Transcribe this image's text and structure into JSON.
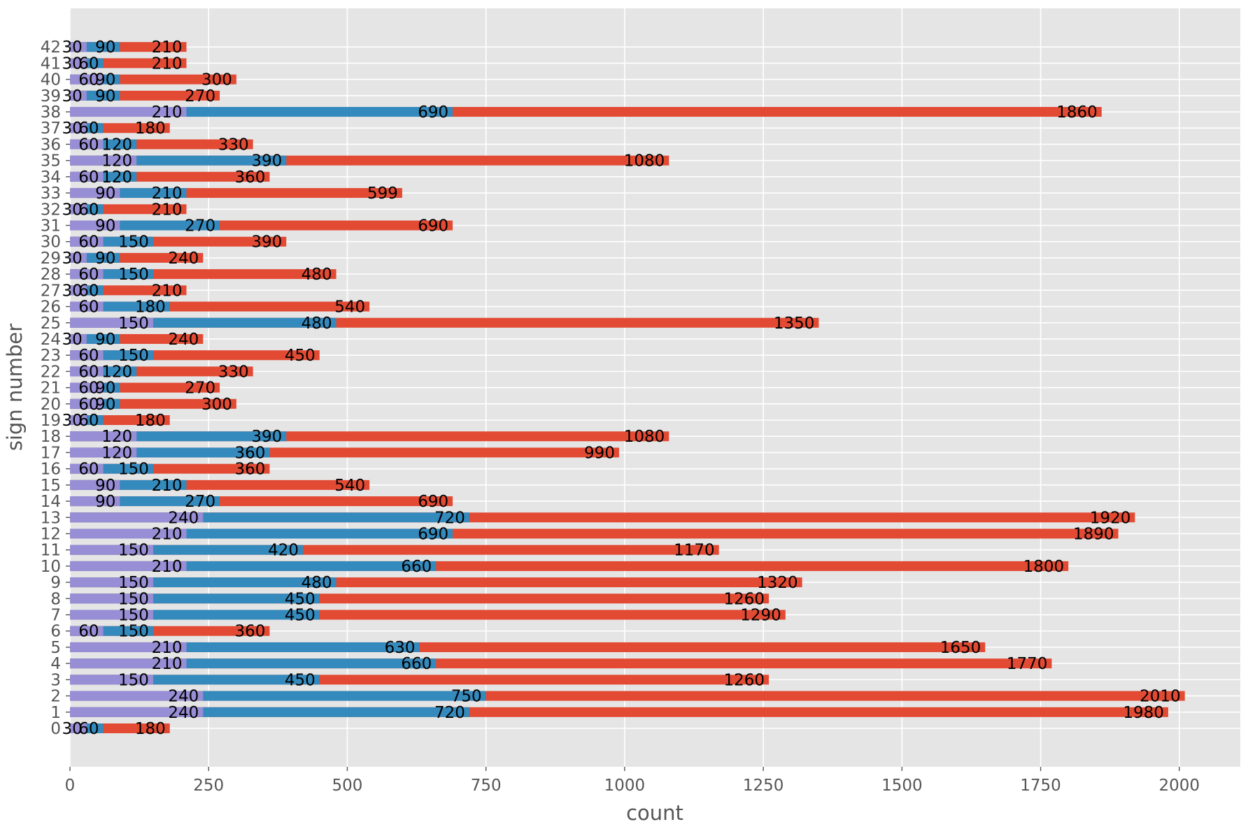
{
  "chart_data": {
    "type": "bar",
    "orientation": "horizontal",
    "style": "overlapping-bars",
    "xlabel": "count",
    "ylabel": "sign number",
    "xlim": [
      0,
      2110
    ],
    "x_ticks": [
      0,
      250,
      500,
      750,
      1000,
      1250,
      1500,
      1750,
      2000
    ],
    "grid": true,
    "categories": [
      0,
      1,
      2,
      3,
      4,
      5,
      6,
      7,
      8,
      9,
      10,
      11,
      12,
      13,
      14,
      15,
      16,
      17,
      18,
      19,
      20,
      21,
      22,
      23,
      24,
      25,
      26,
      27,
      28,
      29,
      30,
      31,
      32,
      33,
      34,
      35,
      36,
      37,
      38,
      39,
      40,
      41,
      42
    ],
    "series": [
      {
        "color": "#E24A33",
        "values": [
          180,
          1980,
          2010,
          1260,
          1770,
          1650,
          360,
          1290,
          1260,
          1320,
          1800,
          1170,
          1890,
          1920,
          690,
          540,
          360,
          990,
          1080,
          180,
          300,
          270,
          330,
          450,
          240,
          1350,
          540,
          210,
          480,
          240,
          390,
          690,
          210,
          599,
          360,
          1080,
          330,
          180,
          1860,
          270,
          300,
          210,
          210
        ]
      },
      {
        "color": "#348ABD",
        "values": [
          60,
          720,
          750,
          450,
          660,
          630,
          150,
          450,
          450,
          480,
          660,
          420,
          690,
          720,
          270,
          210,
          150,
          360,
          390,
          60,
          90,
          90,
          120,
          150,
          90,
          480,
          180,
          60,
          150,
          90,
          150,
          270,
          60,
          210,
          120,
          390,
          120,
          60,
          690,
          90,
          90,
          60,
          90
        ]
      },
      {
        "color": "#988ED5",
        "values": [
          30,
          240,
          240,
          150,
          210,
          210,
          60,
          150,
          150,
          150,
          210,
          150,
          210,
          240,
          90,
          90,
          60,
          120,
          120,
          30,
          60,
          60,
          60,
          60,
          30,
          150,
          60,
          30,
          60,
          30,
          60,
          90,
          30,
          90,
          60,
          120,
          60,
          30,
          210,
          30,
          60,
          30,
          30
        ]
      }
    ]
  }
}
